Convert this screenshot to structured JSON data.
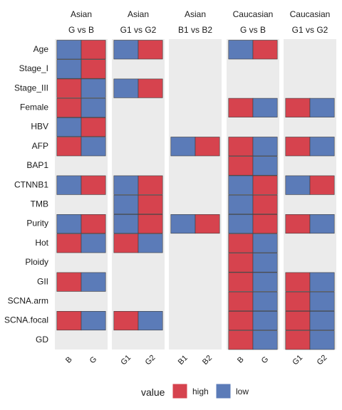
{
  "chart_data": {
    "type": "heatmap",
    "rows": [
      "Age",
      "Stage_I",
      "Stage_III",
      "Female",
      "HBV",
      "AFP",
      "BAP1",
      "CTNNB1",
      "TMB",
      "Purity",
      "Hot",
      "Ploidy",
      "GII",
      "SCNA.arm",
      "SCNA.focal",
      "GD"
    ],
    "panels": [
      {
        "strip_top": "Asian",
        "strip_bottom": "G vs B",
        "columns": [
          "B",
          "G"
        ],
        "cells": {
          "Age": [
            "low",
            "high"
          ],
          "Stage_I": [
            "low",
            "high"
          ],
          "Stage_III": [
            "high",
            "low"
          ],
          "Female": [
            "high",
            "low"
          ],
          "HBV": [
            "low",
            "high"
          ],
          "AFP": [
            "high",
            "low"
          ],
          "CTNNB1": [
            "low",
            "high"
          ],
          "Purity": [
            "low",
            "high"
          ],
          "Hot": [
            "high",
            "low"
          ],
          "GII": [
            "high",
            "low"
          ],
          "SCNA.focal": [
            "high",
            "low"
          ]
        }
      },
      {
        "strip_top": "Asian",
        "strip_bottom": "G1 vs G2",
        "columns": [
          "G1",
          "G2"
        ],
        "cells": {
          "Age": [
            "low",
            "high"
          ],
          "Stage_III": [
            "low",
            "high"
          ],
          "CTNNB1": [
            "low",
            "high"
          ],
          "TMB": [
            "low",
            "high"
          ],
          "Purity": [
            "low",
            "high"
          ],
          "Hot": [
            "high",
            "low"
          ],
          "SCNA.focal": [
            "high",
            "low"
          ]
        }
      },
      {
        "strip_top": "Asian",
        "strip_bottom": "B1 vs B2",
        "columns": [
          "B1",
          "B2"
        ],
        "cells": {
          "AFP": [
            "low",
            "high"
          ],
          "Purity": [
            "low",
            "high"
          ]
        }
      },
      {
        "strip_top": "Caucasian",
        "strip_bottom": "G vs B",
        "columns": [
          "B",
          "G"
        ],
        "cells": {
          "Age": [
            "low",
            "high"
          ],
          "Female": [
            "high",
            "low"
          ],
          "AFP": [
            "high",
            "low"
          ],
          "BAP1": [
            "high",
            "low"
          ],
          "CTNNB1": [
            "low",
            "high"
          ],
          "TMB": [
            "low",
            "high"
          ],
          "Purity": [
            "low",
            "high"
          ],
          "Hot": [
            "high",
            "low"
          ],
          "Ploidy": [
            "high",
            "low"
          ],
          "GII": [
            "high",
            "low"
          ],
          "SCNA.arm": [
            "high",
            "low"
          ],
          "SCNA.focal": [
            "high",
            "low"
          ],
          "GD": [
            "high",
            "low"
          ]
        }
      },
      {
        "strip_top": "Caucasian",
        "strip_bottom": "G1 vs G2",
        "columns": [
          "G1",
          "G2"
        ],
        "cells": {
          "Female": [
            "high",
            "low"
          ],
          "AFP": [
            "high",
            "low"
          ],
          "CTNNB1": [
            "low",
            "high"
          ],
          "Purity": [
            "high",
            "low"
          ],
          "GII": [
            "high",
            "low"
          ],
          "SCNA.arm": [
            "high",
            "low"
          ],
          "SCNA.focal": [
            "high",
            "low"
          ],
          "GD": [
            "high",
            "low"
          ]
        }
      }
    ],
    "legend": {
      "title": "value",
      "position": "bottom",
      "entries": [
        {
          "key": "high",
          "label": "high",
          "color": "#D6434E"
        },
        {
          "key": "low",
          "label": "low",
          "color": "#5B7BB8"
        }
      ]
    },
    "panel_background": "#EBEBEB",
    "grid": false
  }
}
